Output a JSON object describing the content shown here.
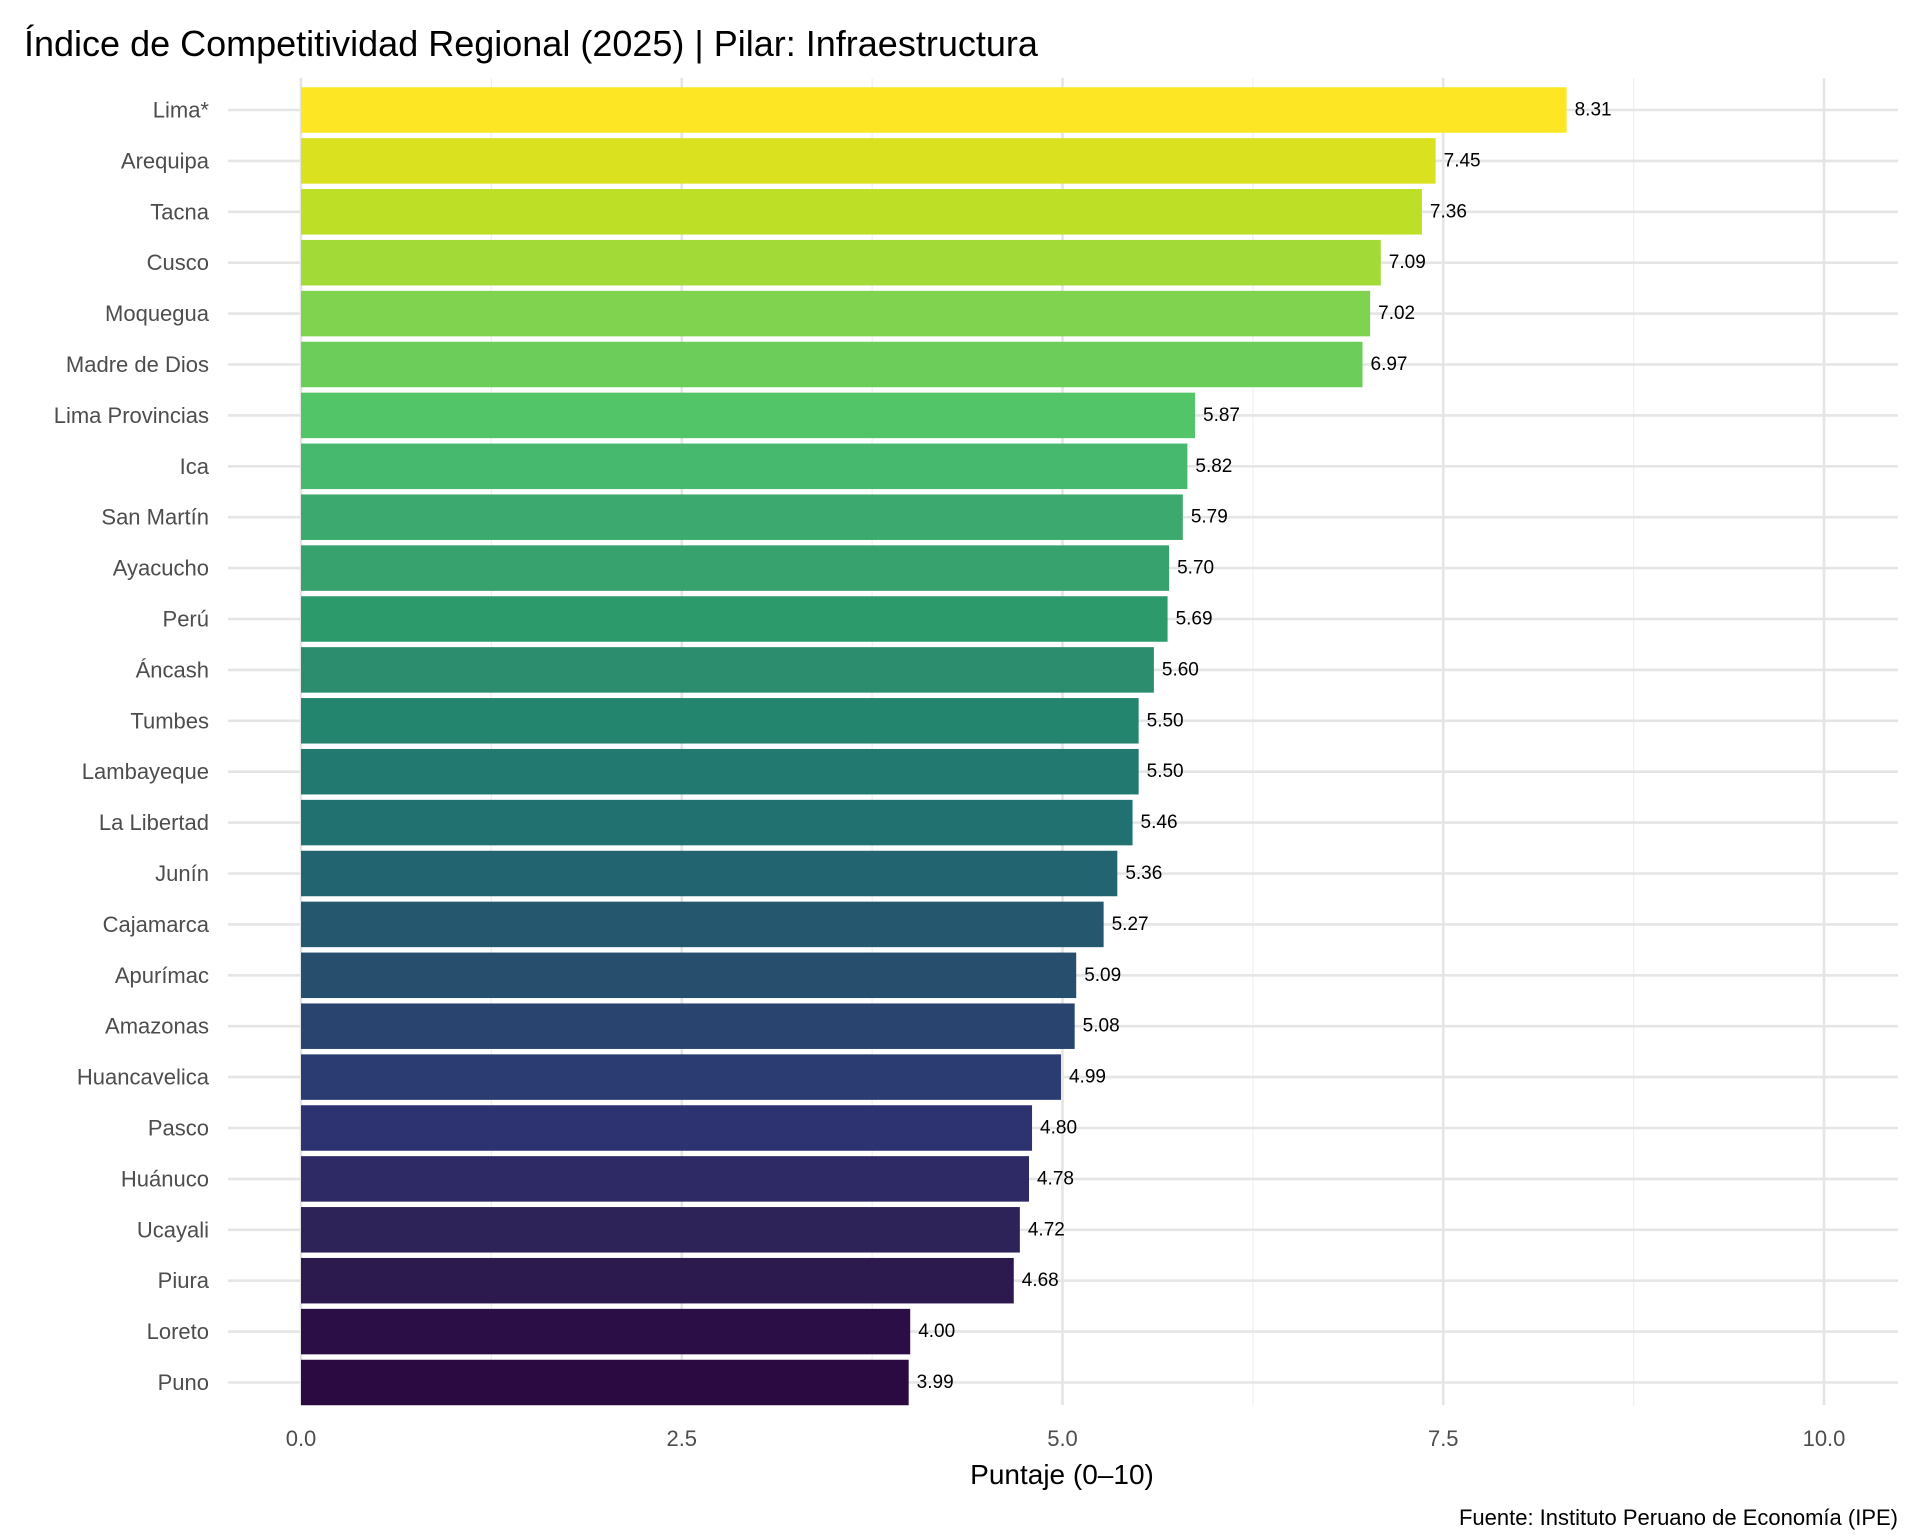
{
  "chart_data": {
    "type": "bar",
    "orientation": "horizontal",
    "title": "Índice de Competitividad Regional (2025) | Pilar: Infraestructura",
    "xlabel": "Puntaje (0–10)",
    "ylabel": "",
    "caption": "Fuente: Instituto Peruano de Economía (IPE)",
    "xlim": [
      0,
      10
    ],
    "x_ticks": [
      0,
      2.5,
      5,
      7.5,
      10
    ],
    "x_tick_labels": [
      "0.0",
      "2.5",
      "5.0",
      "7.5",
      "10.0"
    ],
    "grid": true,
    "legend": "none",
    "color_scale": "viridis",
    "categories": [
      "Lima*",
      "Arequipa",
      "Tacna",
      "Cusco",
      "Moquegua",
      "Madre de Dios",
      "Lima Provincias",
      "Ica",
      "San Martín",
      "Ayacucho",
      "Perú",
      "Áncash",
      "Tumbes",
      "Lambayeque",
      "La Libertad",
      "Junín",
      "Cajamarca",
      "Apurímac",
      "Amazonas",
      "Huancavelica",
      "Pasco",
      "Huánuco",
      "Ucayali",
      "Piura",
      "Loreto",
      "Puno"
    ],
    "values": [
      8.31,
      7.45,
      7.36,
      7.09,
      7.02,
      6.97,
      5.87,
      5.82,
      5.79,
      5.7,
      5.69,
      5.6,
      5.5,
      5.5,
      5.46,
      5.36,
      5.27,
      5.09,
      5.08,
      4.99,
      4.8,
      4.78,
      4.72,
      4.68,
      4.0,
      3.99
    ],
    "value_labels": [
      "8.31",
      "7.45",
      "7.36",
      "7.09",
      "7.02",
      "6.97",
      "5.87",
      "5.82",
      "5.79",
      "5.70",
      "5.69",
      "5.60",
      "5.50",
      "5.50",
      "5.46",
      "5.36",
      "5.27",
      "5.09",
      "5.08",
      "4.99",
      "4.80",
      "4.78",
      "4.72",
      "4.68",
      "4.00",
      "3.99"
    ],
    "colors": [
      "#fde725",
      "#dae11f",
      "#bddf26",
      "#a2da37",
      "#7fd34e",
      "#6ccd5a",
      "#52c569",
      "#46b96f",
      "#3caa6e",
      "#37a26e",
      "#2d9a6c",
      "#2b8d6d",
      "#23856d",
      "#21796f",
      "#20716f",
      "#226470",
      "#25576f",
      "#274e6d",
      "#2a4470",
      "#2b3c72",
      "#2d3271",
      "#2e2a66",
      "#2d2359",
      "#2c1a4f",
      "#2c0e46",
      "#2a0a40"
    ]
  }
}
